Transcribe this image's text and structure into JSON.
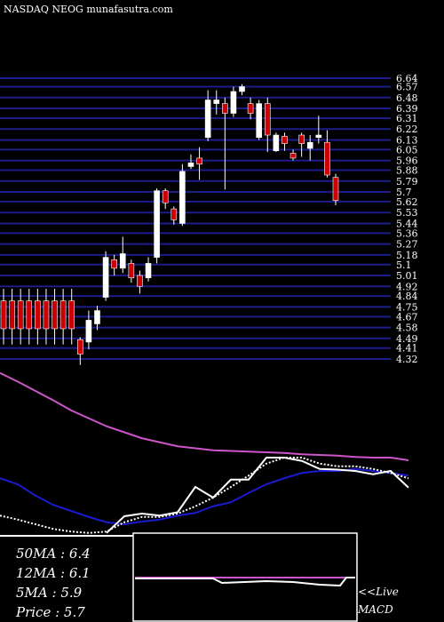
{
  "chart_data": [
    {
      "type": "candlestick",
      "title": "NASDAQ NEOG munafasutra.com",
      "ylim": [
        4.32,
        6.64
      ],
      "yticks": [
        6.64,
        6.57,
        6.48,
        6.39,
        6.31,
        6.22,
        6.13,
        6.05,
        5.96,
        5.88,
        5.79,
        5.7,
        5.62,
        5.53,
        5.44,
        5.36,
        5.27,
        5.18,
        5.1,
        5.01,
        4.92,
        4.84,
        4.75,
        4.67,
        4.58,
        4.49,
        4.41,
        4.32
      ],
      "grid": true,
      "grid_color": "#1c1c8c",
      "up_color": "#ffffff",
      "down_color": "#cc0000",
      "open": [
        4.8,
        4.8,
        4.8,
        4.8,
        4.8,
        4.8,
        4.8,
        4.8,
        4.8,
        4.48,
        4.46,
        4.61,
        4.83,
        5.14,
        5.07,
        5.11,
        5.01,
        4.99,
        5.16,
        5.71,
        5.56,
        5.44,
        5.91,
        5.98,
        6.15,
        6.43,
        6.43,
        6.35,
        6.53,
        6.43,
        6.15,
        6.43,
        6.04,
        6.16,
        6.02,
        6.17,
        6.06,
        6.15,
        6.11,
        5.82
      ],
      "high": [
        4.9,
        4.9,
        4.9,
        4.9,
        4.9,
        4.9,
        4.9,
        4.9,
        4.9,
        4.5,
        4.72,
        4.76,
        5.21,
        5.18,
        5.33,
        5.14,
        5.05,
        5.16,
        5.73,
        5.73,
        5.58,
        5.93,
        6.01,
        6.07,
        6.54,
        6.54,
        6.48,
        6.57,
        6.59,
        6.48,
        6.46,
        6.48,
        6.19,
        6.19,
        6.05,
        6.19,
        6.17,
        6.33,
        6.21,
        5.85
      ],
      "low": [
        4.44,
        4.44,
        4.44,
        4.44,
        4.44,
        4.44,
        4.44,
        4.44,
        4.44,
        4.27,
        4.4,
        4.56,
        4.8,
        5.01,
        5.03,
        4.95,
        4.86,
        4.96,
        5.11,
        5.56,
        5.43,
        5.42,
        5.89,
        5.8,
        6.12,
        6.34,
        5.72,
        6.32,
        6.5,
        6.3,
        6.13,
        6.03,
        6.03,
        6.04,
        5.96,
        5.99,
        5.96,
        6.1,
        5.82,
        5.59
      ],
      "close": [
        4.57,
        4.57,
        4.57,
        4.57,
        4.57,
        4.57,
        4.57,
        4.57,
        4.57,
        4.36,
        4.64,
        4.72,
        5.16,
        5.07,
        5.19,
        4.99,
        4.92,
        5.11,
        5.71,
        5.61,
        5.47,
        5.87,
        5.94,
        5.93,
        6.46,
        6.46,
        6.35,
        6.53,
        6.57,
        6.35,
        6.43,
        6.17,
        6.17,
        6.1,
        5.98,
        6.1,
        6.11,
        6.17,
        5.84,
        5.63
      ]
    },
    {
      "type": "line",
      "ylim": [
        4.3,
        6.9
      ],
      "series": [
        {
          "color": "#cc55cc",
          "values": [
            6.77,
            6.64,
            6.5,
            6.36,
            6.21,
            6.09,
            5.97,
            5.88,
            5.79,
            5.73,
            5.67,
            5.64,
            5.61,
            5.6,
            5.59,
            5.58,
            5.57,
            5.55,
            5.54,
            5.53,
            5.51,
            5.5,
            5.5,
            5.46
          ]
        },
        {
          "color": "#1a1ad0",
          "values": [
            5.19,
            5.1,
            4.93,
            4.79,
            4.7,
            4.61,
            4.53,
            4.5,
            4.54,
            4.57,
            4.63,
            4.67,
            4.77,
            4.83,
            4.97,
            5.1,
            5.19,
            5.27,
            5.3,
            5.3,
            5.33,
            5.3,
            5.27,
            5.23
          ]
        },
        {
          "color": "#ffffff",
          "values": [
            null,
            null,
            null,
            null,
            null,
            null,
            4.37,
            4.62,
            4.66,
            4.63,
            4.68,
            5.06,
            4.9,
            5.17,
            5.17,
            5.5,
            5.5,
            5.45,
            5.33,
            5.32,
            5.3,
            5.25,
            5.3,
            5.05
          ]
        },
        {
          "color": "#ffffff",
          "dashed": true,
          "values": [
            4.63,
            4.57,
            4.5,
            4.43,
            4.39,
            4.37,
            4.39,
            4.53,
            4.61,
            4.61,
            4.66,
            4.77,
            4.9,
            5.06,
            5.23,
            5.41,
            5.5,
            5.5,
            5.41,
            5.37,
            5.37,
            5.33,
            5.27,
            5.19
          ]
        }
      ],
      "info": [
        "50MA : 6.4",
        "12MA : 6.1",
        "5MA : 5.9",
        "Price  : 5.7"
      ],
      "annotation": [
        "<<Live",
        "MACD"
      ]
    }
  ]
}
